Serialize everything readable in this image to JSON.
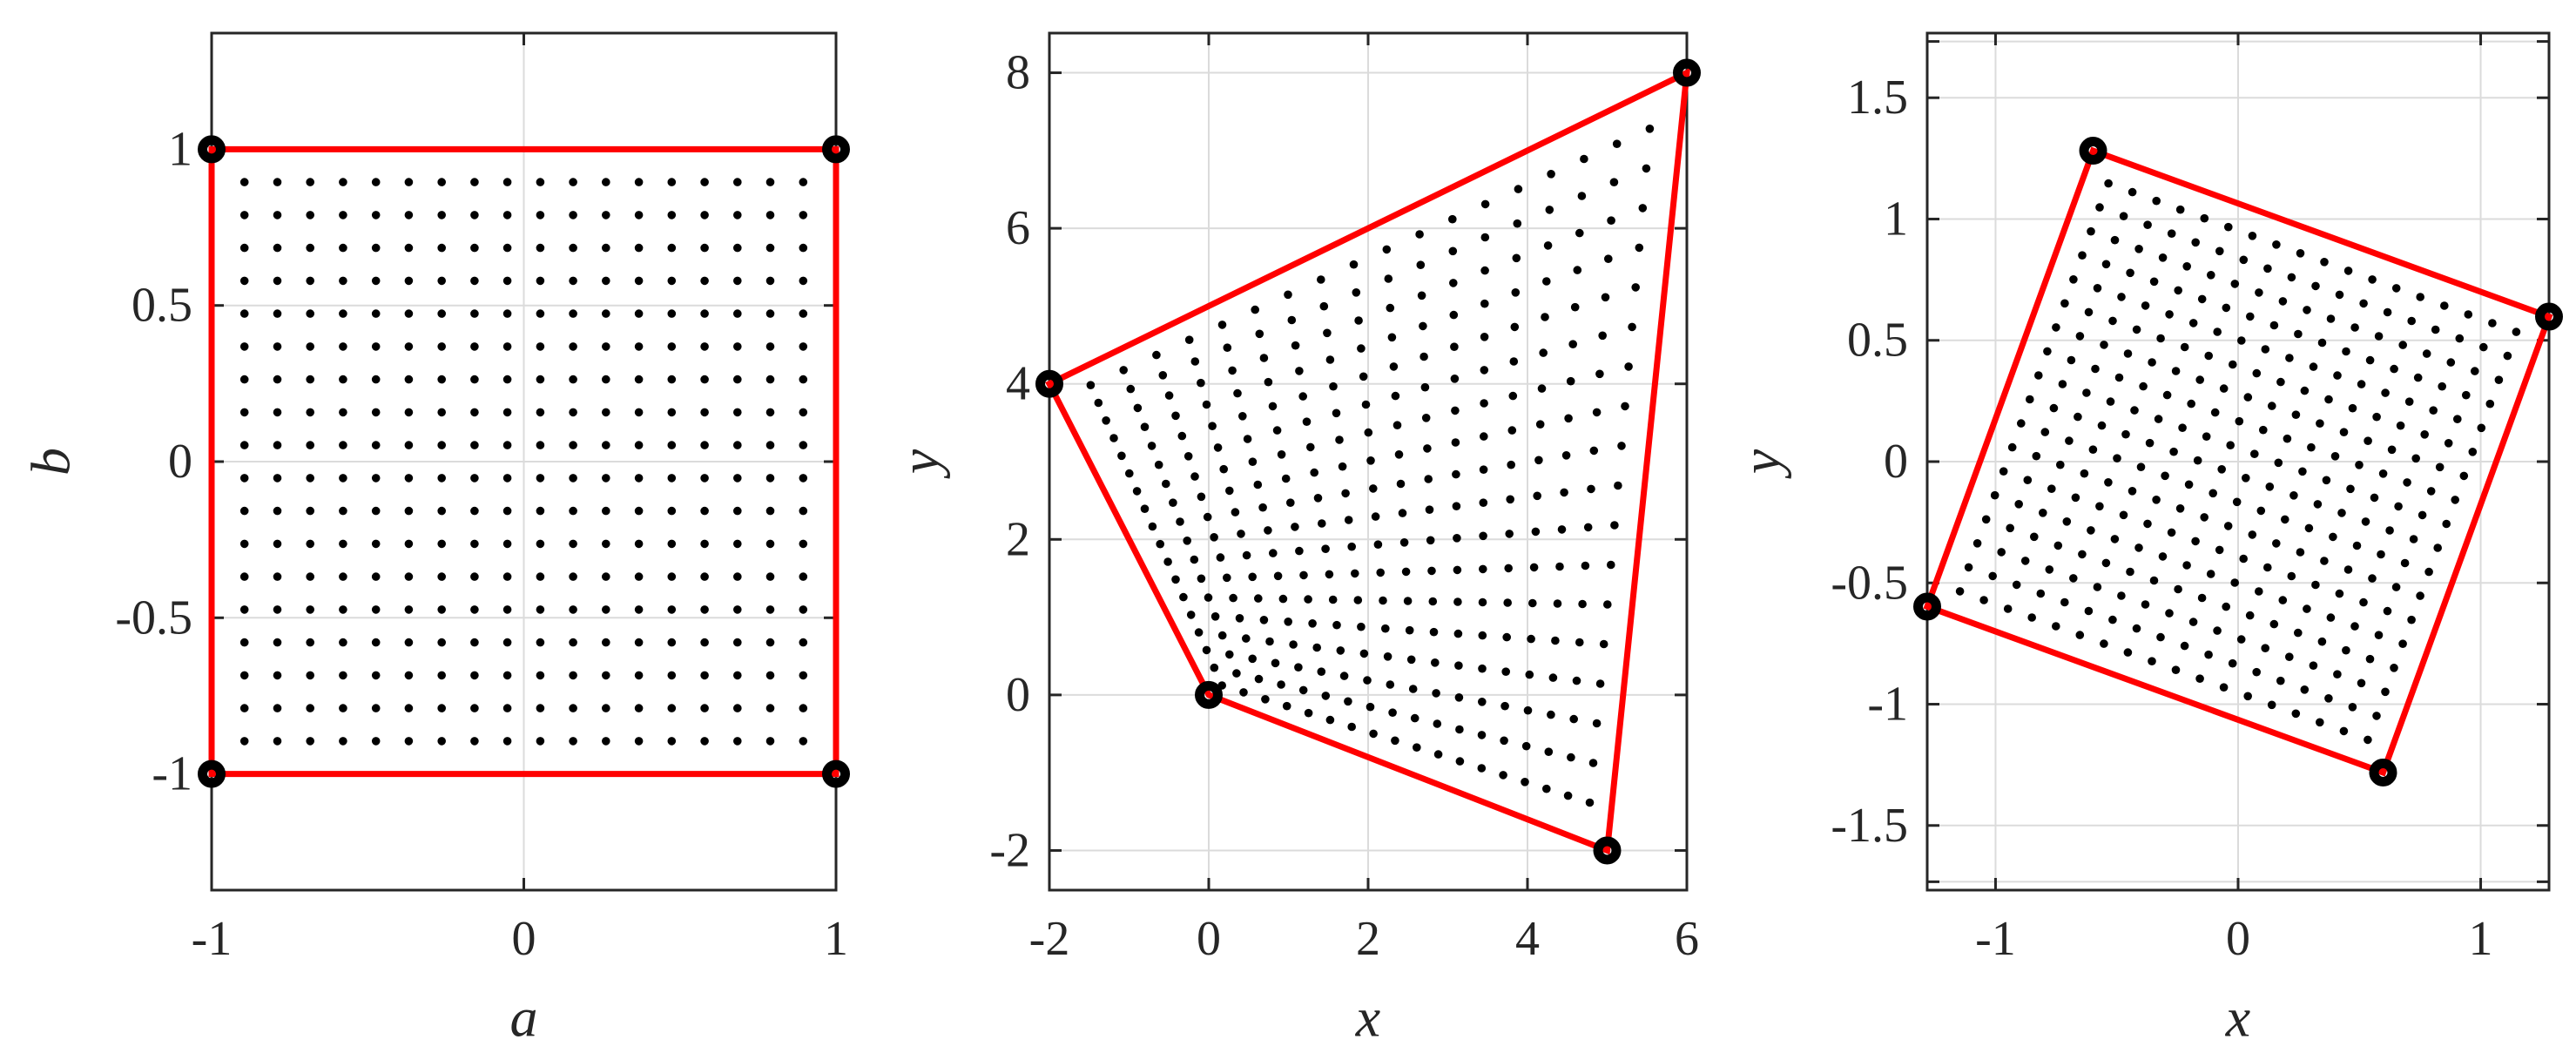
{
  "colors": {
    "background": "#FFFFFF",
    "polygon": "#FF0000",
    "marker_ring": "#000000",
    "dot": "#000000",
    "grid": "#DBDBDB",
    "axis": "#262626",
    "tick_label": "#262626"
  },
  "chart_data": [
    {
      "type": "scatter",
      "title": "",
      "xlabel": "a",
      "ylabel": "b",
      "xlim": [
        -1,
        1
      ],
      "ylim": [
        -1.372,
        1.372
      ],
      "xticks": [
        -1,
        0,
        1
      ],
      "xticklabels": [
        "-1",
        "0",
        "1"
      ],
      "yticks": [
        -1,
        -0.5,
        0,
        0.5,
        1
      ],
      "yticklabels": [
        "-1",
        "-0.5",
        "0",
        "0.5",
        "1"
      ],
      "grid": true,
      "legend": null,
      "polygon": [
        [
          -1,
          1
        ],
        [
          1,
          1
        ],
        [
          1,
          -1
        ],
        [
          -1,
          -1
        ]
      ],
      "corner_markers": [
        [
          -1,
          1
        ],
        [
          1,
          1
        ],
        [
          1,
          -1
        ],
        [
          -1,
          -1
        ]
      ],
      "interior_points": {
        "count": "18x18",
        "n": 18,
        "rule": "uniform interior nodes of linspace(-1,1,20)",
        "mapping": "identity"
      }
    },
    {
      "type": "scatter",
      "title": "",
      "xlabel": "x",
      "ylabel": "y",
      "xlim": [
        -2,
        6
      ],
      "ylim": [
        -2.51,
        8.51
      ],
      "xticks": [
        -2,
        0,
        2,
        4,
        6
      ],
      "xticklabels": [
        "-2",
        "0",
        "2",
        "4",
        "6"
      ],
      "yticks": [
        -2,
        0,
        2,
        4,
        6,
        8
      ],
      "yticklabels": [
        "-2",
        "0",
        "2",
        "4",
        "6",
        "8"
      ],
      "grid": true,
      "legend": null,
      "polygon": [
        [
          -2,
          4
        ],
        [
          6,
          8
        ],
        [
          5,
          -2
        ],
        [
          0,
          0
        ]
      ],
      "corner_markers": [
        [
          -2,
          4
        ],
        [
          0,
          0
        ],
        [
          5,
          -2
        ],
        [
          6,
          8
        ]
      ],
      "interior_points": {
        "count": "18x18",
        "n": 18,
        "rule": "uniform interior nodes of linspace(-1,1,20)",
        "mapping": "bilinear",
        "bilinear_corners": [
          [
            0,
            0
          ],
          [
            5,
            -2
          ],
          [
            6,
            8
          ],
          [
            -2,
            4
          ]
        ]
      }
    },
    {
      "type": "scatter",
      "title": "",
      "xlabel": "x",
      "ylabel": "y",
      "xlim": [
        -1.2817,
        1.2817
      ],
      "ylim": [
        -1.7665,
        1.7665
      ],
      "xticks": [
        -1,
        0,
        1
      ],
      "xticklabels": [
        "-1",
        "0",
        "1"
      ],
      "yticks": [
        -1.5,
        -1,
        -0.5,
        0,
        0.5,
        1,
        1.5
      ],
      "yticklabels": [
        "-1.5",
        "-1",
        "-0.5",
        "0",
        "0.5",
        "1",
        "1.5"
      ],
      "extra_y_gridlines": [
        -1.732,
        1.732
      ],
      "grid": true,
      "legend": null,
      "polygon": [
        [
          -0.5977,
          1.2817
        ],
        [
          1.2817,
          0.5977
        ],
        [
          0.5977,
          -1.2817
        ],
        [
          -1.2817,
          -0.5977
        ]
      ],
      "corner_markers": [
        [
          -0.5977,
          1.2817
        ],
        [
          1.2817,
          0.5977
        ],
        [
          0.5977,
          -1.2817
        ],
        [
          -1.2817,
          -0.5977
        ]
      ],
      "interior_points": {
        "count": "18x18",
        "n": 18,
        "rule": "uniform interior nodes of linspace(-1,1,20)",
        "mapping": "rotation",
        "rotation_deg": -20
      }
    }
  ]
}
